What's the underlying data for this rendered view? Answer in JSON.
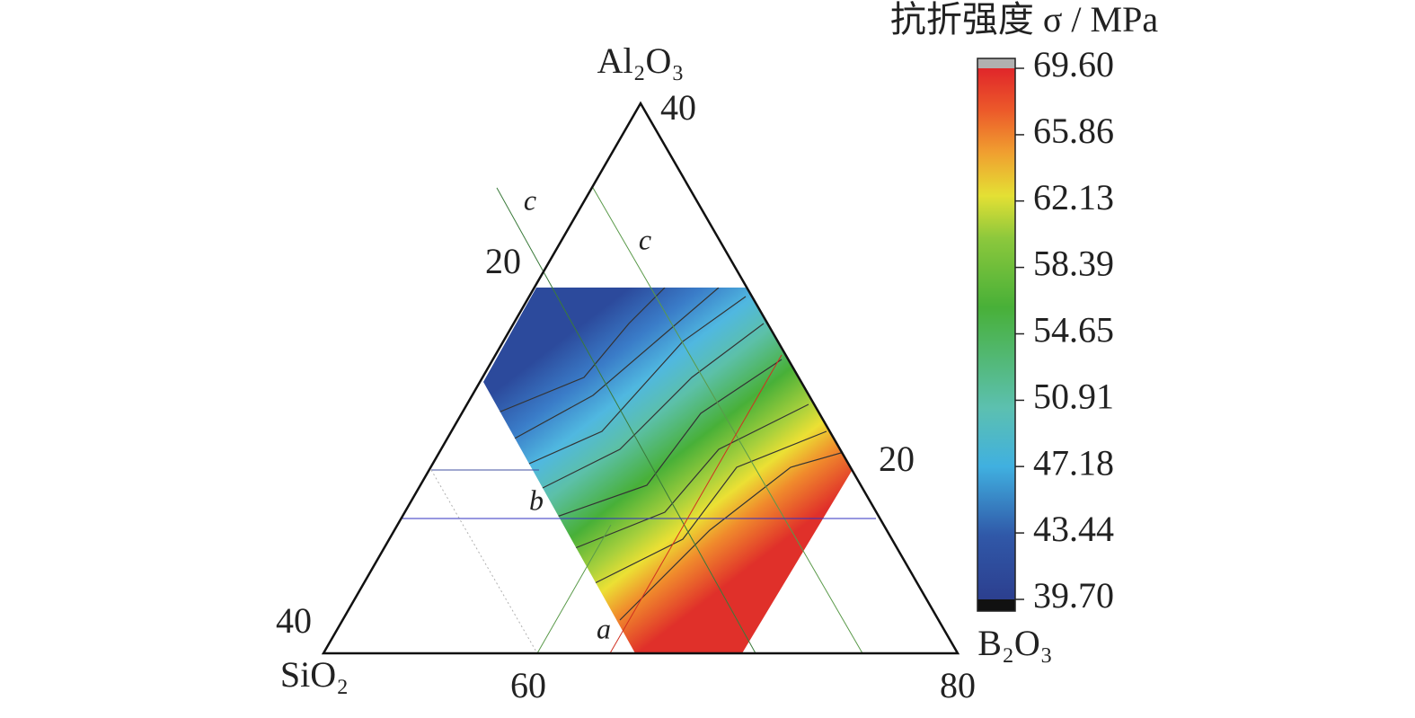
{
  "chart_data": {
    "type": "ternary",
    "colorbar_title": "抗折强度 σ / MPa",
    "axes": [
      "Al₂O₃",
      "SiO₂",
      "B₂O₃"
    ],
    "edge_labels": [
      40,
      20,
      40,
      60,
      80,
      20
    ],
    "line_labels": [
      "c",
      "c",
      "b",
      "a"
    ],
    "colorbar": {
      "ylim": [
        39.7,
        69.6
      ],
      "yticks": [
        {
          "value": 69.6,
          "label": "69.60"
        },
        65.86,
        62.13,
        58.39,
        54.65,
        50.91,
        47.18,
        43.44,
        {
          "value": 39.7,
          "label": "39.70"
        }
      ]
    }
  }
}
